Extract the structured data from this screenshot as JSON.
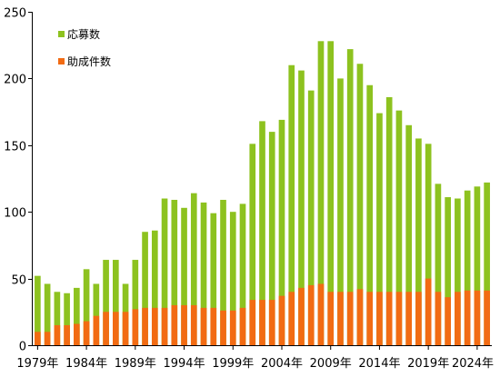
{
  "chart_data": {
    "type": "bar",
    "title": "",
    "xlabel": "",
    "ylabel": "",
    "ylim": [
      0,
      250
    ],
    "y_ticks": [
      0,
      50,
      100,
      150,
      200,
      250
    ],
    "grid": false,
    "legend_position": "top-left",
    "years": [
      1979,
      1980,
      1981,
      1982,
      1983,
      1984,
      1985,
      1986,
      1987,
      1988,
      1989,
      1990,
      1991,
      1992,
      1993,
      1994,
      1995,
      1996,
      1997,
      1998,
      1999,
      2000,
      2001,
      2002,
      2003,
      2004,
      2005,
      2006,
      2007,
      2008,
      2009,
      2010,
      2011,
      2012,
      2013,
      2014,
      2015,
      2016,
      2017,
      2018,
      2019,
      2020,
      2021,
      2022,
      2023,
      2024,
      2025
    ],
    "x_tick_labels": [
      "1979年",
      "1984年",
      "1989年",
      "1994年",
      "1999年",
      "2004年",
      "2009年",
      "2014年",
      "2019年",
      "2024年"
    ],
    "x_tick_years": [
      1979,
      1984,
      1989,
      1994,
      1999,
      2004,
      2009,
      2014,
      2019,
      2024
    ],
    "series": [
      {
        "name": "応募数",
        "color": "#8dc21f",
        "values": [
          52,
          46,
          40,
          39,
          43,
          57,
          46,
          64,
          64,
          46,
          64,
          85,
          86,
          110,
          109,
          103,
          114,
          107,
          99,
          109,
          100,
          106,
          151,
          168,
          160,
          169,
          210,
          206,
          191,
          228,
          228,
          200,
          222,
          211,
          195,
          174,
          186,
          176,
          165,
          155,
          151,
          121,
          111,
          110,
          116,
          119,
          122
        ]
      },
      {
        "name": "助成件数",
        "color": "#f26b13",
        "values": [
          10,
          10,
          15,
          15,
          16,
          18,
          22,
          25,
          25,
          25,
          27,
          28,
          28,
          28,
          30,
          30,
          30,
          28,
          28,
          26,
          26,
          28,
          34,
          34,
          34,
          37,
          40,
          43,
          45,
          46,
          40,
          40,
          40,
          42,
          40,
          40,
          40,
          40,
          40,
          40,
          50,
          40,
          36,
          40,
          41,
          41,
          41
        ]
      }
    ]
  }
}
